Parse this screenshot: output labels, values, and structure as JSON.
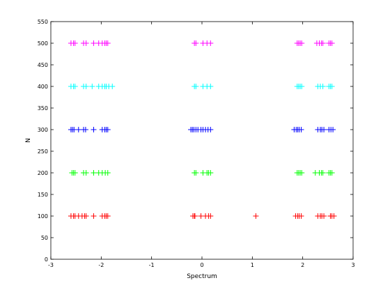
{
  "chart_data": {
    "type": "scatter",
    "title": "",
    "xlabel": "Spectrum",
    "ylabel": "N",
    "xlim": [
      -3,
      3
    ],
    "ylim": [
      0,
      550
    ],
    "xticks": [
      -3,
      -2,
      -1,
      0,
      1,
      2,
      3
    ],
    "xtick_labels": [
      "-3",
      "-2",
      "-1",
      "0",
      "1",
      "2",
      "3"
    ],
    "yticks": [
      0,
      50,
      100,
      150,
      200,
      250,
      300,
      350,
      400,
      450,
      500,
      550
    ],
    "ytick_labels": [
      "0",
      "50",
      "100",
      "150",
      "200",
      "250",
      "300",
      "350",
      "400",
      "450",
      "500",
      "550"
    ],
    "marker": "+",
    "grid": false,
    "legend": "none",
    "series": [
      {
        "color": "#ff0000",
        "y": 100,
        "x": [
          -2.6,
          -2.55,
          -2.52,
          -2.45,
          -2.38,
          -2.33,
          -2.3,
          -2.15,
          -1.98,
          -1.93,
          -1.9,
          -1.87,
          -0.18,
          -0.15,
          -0.14,
          -0.02,
          0.07,
          0.13,
          0.17,
          1.07,
          1.86,
          1.9,
          1.93,
          1.97,
          2.3,
          2.35,
          2.38,
          2.42,
          2.55,
          2.58,
          2.62
        ]
      },
      {
        "color": "#00ff00",
        "y": 200,
        "x": [
          -2.58,
          -2.55,
          -2.52,
          -2.35,
          -2.3,
          -2.15,
          -2.05,
          -1.98,
          -1.92,
          -1.87,
          -0.15,
          -0.12,
          0.02,
          0.1,
          0.13,
          0.17,
          1.89,
          1.92,
          1.95,
          1.98,
          2.25,
          2.33,
          2.37,
          2.4,
          2.52,
          2.55,
          2.58
        ]
      },
      {
        "color": "#0000ff",
        "y": 300,
        "x": [
          -2.6,
          -2.57,
          -2.54,
          -2.45,
          -2.35,
          -2.31,
          -2.15,
          -1.98,
          -1.93,
          -1.9,
          -1.87,
          -0.22,
          -0.19,
          -0.16,
          -0.12,
          -0.08,
          -0.02,
          0.02,
          0.07,
          0.12,
          0.17,
          1.83,
          1.87,
          1.9,
          1.93,
          1.97,
          2.3,
          2.35,
          2.38,
          2.42,
          2.52,
          2.56,
          2.6
        ]
      },
      {
        "color": "#00ffff",
        "y": 400,
        "x": [
          -2.6,
          -2.55,
          -2.52,
          -2.35,
          -2.3,
          -2.18,
          -2.05,
          -1.98,
          -1.93,
          -1.9,
          -1.85,
          -1.78,
          -0.15,
          -0.12,
          0.02,
          0.1,
          0.17,
          1.89,
          1.92,
          1.95,
          1.98,
          2.3,
          2.35,
          2.4,
          2.52,
          2.55,
          2.58
        ]
      },
      {
        "color": "#ff00ff",
        "y": 500,
        "x": [
          -2.6,
          -2.55,
          -2.52,
          -2.35,
          -2.3,
          -2.15,
          -2.05,
          -1.98,
          -1.93,
          -1.9,
          -1.87,
          -0.15,
          -0.12,
          0.02,
          0.1,
          0.17,
          1.89,
          1.92,
          1.95,
          1.98,
          2.28,
          2.33,
          2.37,
          2.4,
          2.52,
          2.55,
          2.58
        ]
      }
    ]
  }
}
